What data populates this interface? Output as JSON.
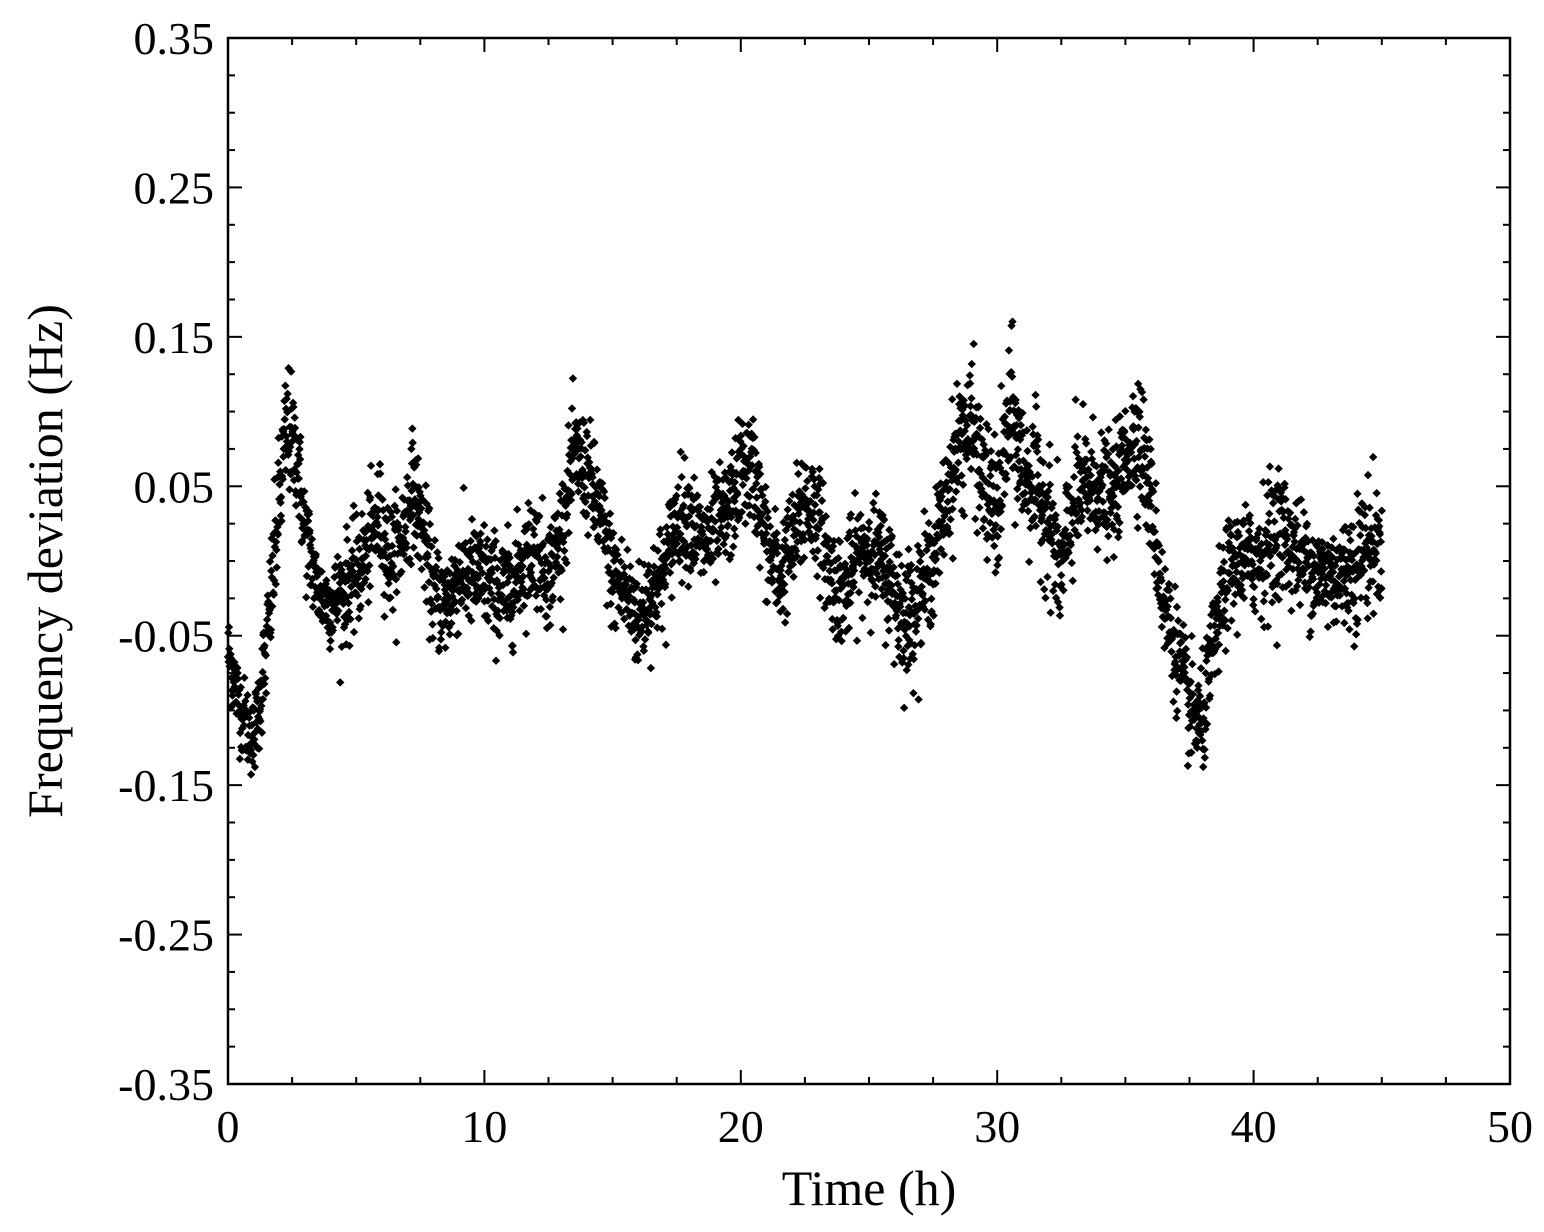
{
  "chart_data": {
    "type": "scatter",
    "title": "",
    "xlabel": "Time (h)",
    "ylabel": "Frequency deviation (Hz)",
    "xlim": [
      0,
      50
    ],
    "ylim": [
      -0.35,
      0.35
    ],
    "x_ticks": [
      0,
      10,
      20,
      30,
      40,
      50
    ],
    "x_tick_labels": [
      "0",
      "10",
      "20",
      "30",
      "40",
      "50"
    ],
    "y_ticks": [
      0.35,
      0.25,
      0.15,
      0.05,
      -0.05,
      -0.15,
      -0.25,
      -0.35
    ],
    "y_tick_labels": [
      "0.35",
      "0.25",
      "0.15",
      "0.05",
      "-0.05",
      "-0.15",
      "-0.25",
      "-0.35"
    ],
    "marker": "diamond",
    "marker_color": "#000000",
    "grid": false,
    "legend": "none",
    "series": [
      {
        "x": [
          0,
          0.5,
          1.0,
          1.5,
          2.0,
          2.3,
          2.7,
          3.0,
          3.5,
          4.0,
          4.5,
          5.0,
          5.5,
          5.9,
          6.3,
          6.7,
          7.2,
          7.6,
          8.0,
          8.5,
          9.0,
          9.5,
          10.0,
          10.5,
          11.0,
          11.5,
          12.0,
          12.5,
          13.0,
          13.5,
          14.0,
          14.5,
          15.0,
          15.5,
          16.0,
          16.5,
          17.0,
          17.5,
          18.0,
          18.5,
          19.0,
          19.5,
          20.0,
          20.5,
          21.0,
          21.5,
          22.0,
          22.5,
          23.0,
          23.5,
          24.0,
          24.5,
          25.0,
          25.5,
          26.0,
          26.5,
          27.0,
          27.5,
          28.0,
          28.5,
          29.0,
          29.5,
          30.0,
          30.5,
          31.0,
          31.5,
          32.0,
          32.5,
          33.0,
          33.5,
          34.0,
          34.5,
          35.0,
          35.5,
          36.0,
          36.5,
          37.0,
          37.5,
          38.0,
          38.5,
          39.0,
          39.5,
          40.0,
          40.5,
          41.0,
          41.5,
          42.0,
          42.5,
          43.0,
          43.5,
          44.0,
          44.5,
          45.0
        ],
        "y": [
          -0.06,
          -0.1,
          -0.12,
          -0.06,
          0.04,
          0.09,
          0.07,
          0.02,
          -0.02,
          -0.03,
          -0.02,
          -0.01,
          0.01,
          0.03,
          0.0,
          0.01,
          0.05,
          0.02,
          -0.02,
          -0.03,
          -0.01,
          -0.01,
          -0.01,
          -0.02,
          -0.02,
          0.0,
          0.01,
          -0.01,
          0.02,
          0.07,
          0.06,
          0.03,
          -0.01,
          -0.02,
          -0.04,
          -0.02,
          -0.01,
          0.03,
          0.03,
          0.01,
          0.02,
          0.03,
          0.06,
          0.06,
          0.01,
          -0.01,
          0.01,
          0.04,
          0.03,
          -0.01,
          -0.02,
          0.0,
          0.01,
          0.0,
          -0.02,
          -0.04,
          -0.02,
          0.0,
          0.04,
          0.08,
          0.09,
          0.05,
          0.03,
          0.1,
          0.06,
          0.05,
          0.03,
          -0.01,
          0.04,
          0.05,
          0.05,
          0.04,
          0.07,
          0.09,
          0.04,
          -0.03,
          -0.06,
          -0.1,
          -0.11,
          -0.05,
          -0.01,
          0.0,
          0.0,
          0.01,
          0.02,
          0.01,
          0.0,
          -0.01,
          -0.01,
          -0.01,
          0.0,
          0.01,
          0.01
        ],
        "spread": [
          0.03,
          0.03,
          0.03,
          0.04,
          0.05,
          0.05,
          0.04,
          0.04,
          0.03,
          0.03,
          0.04,
          0.04,
          0.04,
          0.04,
          0.04,
          0.04,
          0.04,
          0.04,
          0.04,
          0.04,
          0.04,
          0.04,
          0.04,
          0.04,
          0.04,
          0.04,
          0.04,
          0.04,
          0.04,
          0.04,
          0.04,
          0.04,
          0.04,
          0.04,
          0.04,
          0.04,
          0.04,
          0.04,
          0.04,
          0.04,
          0.04,
          0.04,
          0.04,
          0.04,
          0.04,
          0.04,
          0.04,
          0.05,
          0.04,
          0.04,
          0.04,
          0.04,
          0.04,
          0.04,
          0.05,
          0.05,
          0.04,
          0.04,
          0.04,
          0.05,
          0.05,
          0.05,
          0.05,
          0.06,
          0.05,
          0.05,
          0.05,
          0.05,
          0.05,
          0.05,
          0.04,
          0.04,
          0.04,
          0.05,
          0.04,
          0.04,
          0.04,
          0.04,
          0.04,
          0.04,
          0.04,
          0.04,
          0.04,
          0.05,
          0.05,
          0.04,
          0.04,
          0.04,
          0.04,
          0.04,
          0.05,
          0.05,
          0.04
        ]
      }
    ]
  }
}
